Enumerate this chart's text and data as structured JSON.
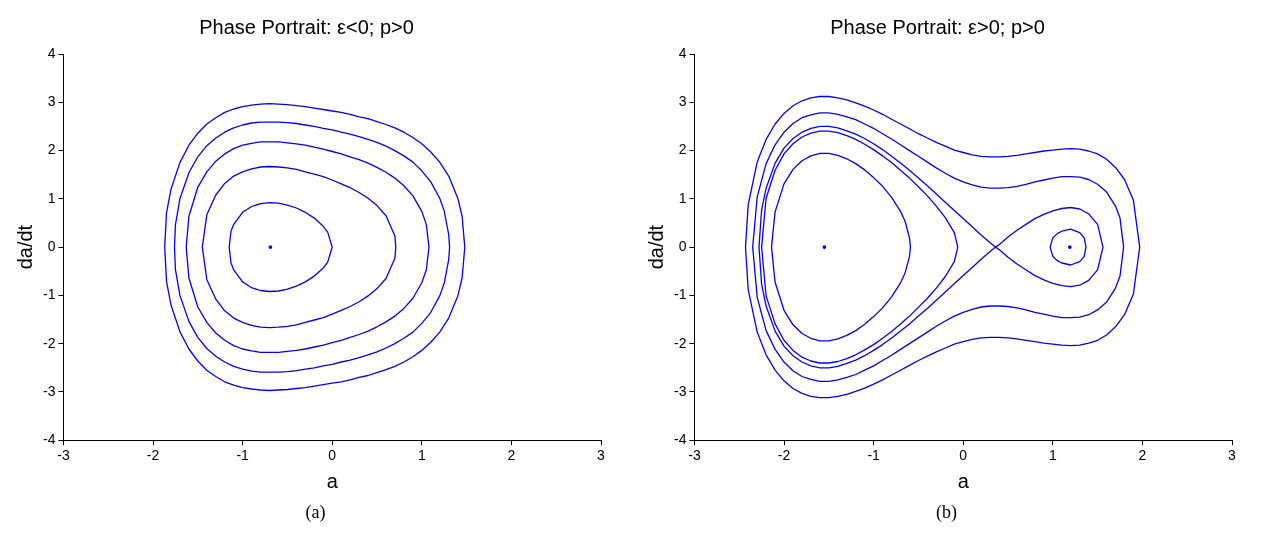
{
  "chart_data": [
    {
      "type": "scatter",
      "title": "Phase Portrait: ε<0; p>0",
      "xlabel": "a",
      "ylabel": "da/dt",
      "xlim": [
        -3,
        3
      ],
      "ylim": [
        -4,
        4
      ],
      "xticks": [
        -3,
        -2,
        -1,
        0,
        1,
        2,
        3
      ],
      "yticks": [
        -4,
        -3,
        -2,
        -1,
        0,
        1,
        2,
        3,
        4
      ],
      "grid": false,
      "marker": "circle",
      "annotations": [
        "(a)"
      ],
      "series": [
        {
          "color": "#0000ff",
          "x": [
            -0.69
          ],
          "values": [
            0
          ]
        }
      ]
    },
    {
      "type": "scatter",
      "title": "Phase Portrait: ε>0; p>0",
      "xlabel": "a",
      "ylabel": "da/dt",
      "xlim": [
        -3,
        3
      ],
      "ylim": [
        -4,
        4
      ],
      "xticks": [
        -3,
        -2,
        -1,
        0,
        1,
        2,
        3
      ],
      "yticks": [
        -4,
        -3,
        -2,
        -1,
        0,
        1,
        2,
        3,
        4
      ],
      "grid": false,
      "marker": "circle",
      "annotations": [
        "(b)"
      ],
      "series": [
        {
          "color": "#0000ff",
          "x": [
            -1.55,
            1.19
          ],
          "values": [
            0,
            0
          ]
        }
      ]
    }
  ]
}
